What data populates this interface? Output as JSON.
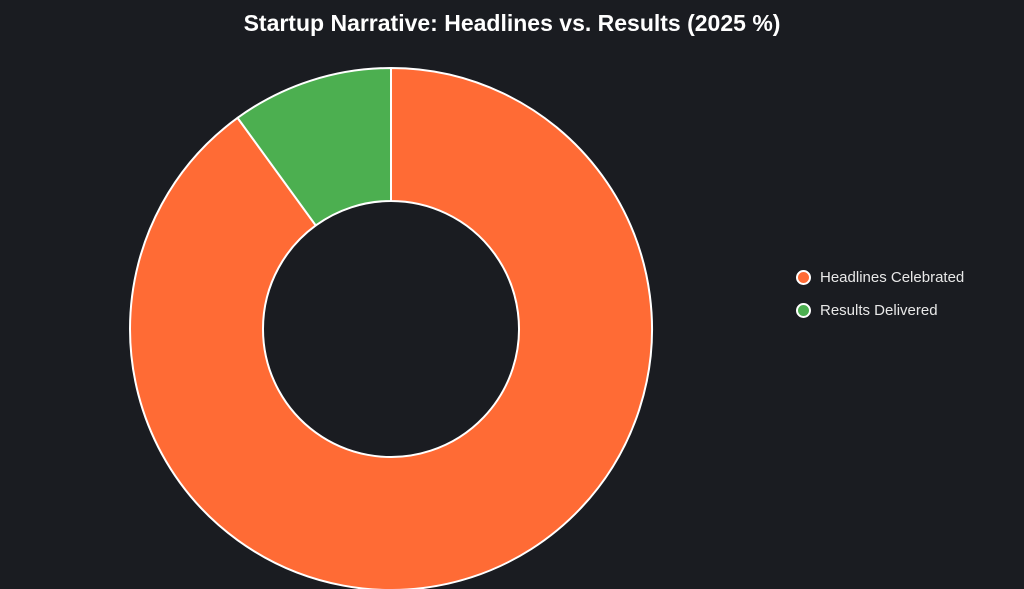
{
  "title": "Startup Narrative: Headlines vs. Results (2025 %)",
  "chart_data": {
    "type": "pie",
    "subtype": "donut",
    "title": "Startup Narrative: Headlines vs. Results (2025 %)",
    "labels": [
      "Headlines Celebrated",
      "Results Delivered"
    ],
    "values": [
      90,
      10
    ],
    "unit": "%",
    "colors": [
      "#ff6b35",
      "#4caf50"
    ],
    "border_color": "#ffffff",
    "border_width": 2,
    "cutout_ratio": 0.49,
    "rotation_start_deg": 0,
    "direction": "clockwise",
    "legend_position": "right",
    "background": "#1a1c21",
    "data_labels_shown": false
  },
  "legend": {
    "items": [
      {
        "label": "Headlines Celebrated",
        "color": "#ff6b35"
      },
      {
        "label": "Results Delivered",
        "color": "#4caf50"
      }
    ]
  }
}
